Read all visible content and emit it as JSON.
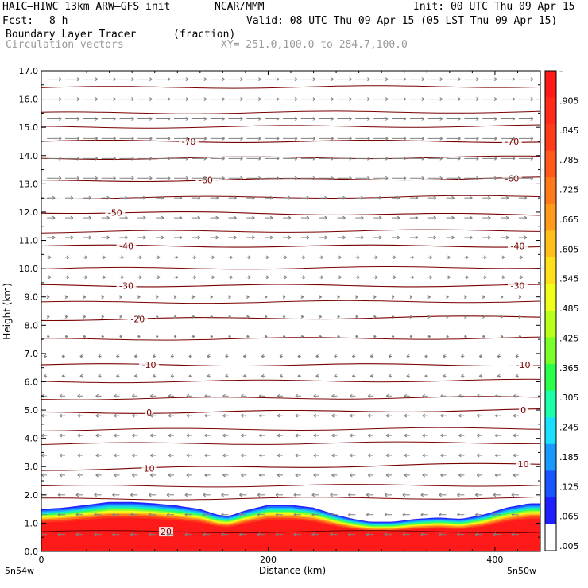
{
  "header": {
    "model": "HAIC–HIWC 13km ARW–GFS init",
    "org": "NCAR/MMM",
    "init": "Init: 00 UTC Thu 09 Apr 15",
    "fcst_label": "Fcst:",
    "fcst_value": "8 h",
    "valid": "Valid: 08 UTC Thu 09 Apr 15 (05 LST Thu 09 Apr 15)",
    "field_name": "Boundary Layer Tracer",
    "field_units": "(fraction)",
    "vector_name": "Circulation vectors",
    "xy_range": "XY= 251.0,100.0 to 284.7,100.0"
  },
  "chart_data": {
    "type": "heatmap",
    "xlabel": "Distance (km)",
    "ylabel": "Height (km)",
    "xlim": [
      0,
      440
    ],
    "ylim": [
      0.0,
      17.0
    ],
    "x_ticks": [
      "0",
      "200",
      "400"
    ],
    "x_tick_values": [
      0,
      200,
      400
    ],
    "y_ticks": [
      "0.0",
      "1.0",
      "2.0",
      "3.0",
      "4.0",
      "5.0",
      "6.0",
      "7.0",
      "8.0",
      "9.0",
      "10.0",
      "11.0",
      "12.0",
      "13.0",
      "14.0",
      "15.0",
      "16.0",
      "17.0"
    ],
    "endpoint_labels": [
      "5n54w",
      "5n50w"
    ],
    "colorbar": {
      "labels": [
        "–",
        ".905",
        ".845",
        ".785",
        ".725",
        ".665",
        ".605",
        ".545",
        ".485",
        ".425",
        ".365",
        ".305",
        ".245",
        ".185",
        ".125",
        ".065",
        ".005"
      ],
      "colors": [
        "#ff1a1a",
        "#ff2a1a",
        "#ff3c1a",
        "#ff5a1a",
        "#ff7a1a",
        "#ff9a1a",
        "#ffbe1a",
        "#ffe01a",
        "#f0ff1a",
        "#b8ff1a",
        "#7aff2a",
        "#2aff4a",
        "#1affaa",
        "#1ae0ff",
        "#1a9aff",
        "#1a55ff",
        "#2020ff",
        "#ffffff"
      ]
    },
    "tracer_top_km": [
      [
        0,
        1.5
      ],
      [
        20,
        1.55
      ],
      [
        40,
        1.65
      ],
      [
        60,
        1.75
      ],
      [
        80,
        1.75
      ],
      [
        100,
        1.7
      ],
      [
        120,
        1.62
      ],
      [
        140,
        1.5
      ],
      [
        155,
        1.3
      ],
      [
        165,
        1.25
      ],
      [
        180,
        1.45
      ],
      [
        200,
        1.65
      ],
      [
        220,
        1.65
      ],
      [
        240,
        1.55
      ],
      [
        260,
        1.3
      ],
      [
        275,
        1.15
      ],
      [
        290,
        1.05
      ],
      [
        310,
        1.05
      ],
      [
        330,
        1.15
      ],
      [
        350,
        1.2
      ],
      [
        370,
        1.15
      ],
      [
        390,
        1.3
      ],
      [
        410,
        1.55
      ],
      [
        430,
        1.7
      ],
      [
        440,
        1.7
      ]
    ],
    "temperature_contours": [
      {
        "label": "-70",
        "y0": 14.5,
        "y1": 14.5,
        "label_x": [
          130,
          415
        ]
      },
      {
        "label": "-60",
        "y0": 13.1,
        "y1": 13.2,
        "label_x": [
          145,
          415
        ]
      },
      {
        "label": "-50",
        "y0": 12.0,
        "y1": 11.9,
        "label_x": [
          65
        ]
      },
      {
        "label": "-40",
        "y0": 10.8,
        "y1": 10.8,
        "label_x": [
          75,
          420
        ]
      },
      {
        "label": "-30",
        "y0": 9.4,
        "y1": 9.4,
        "label_x": [
          75,
          420
        ]
      },
      {
        "label": "-20",
        "y0": 8.2,
        "y1": 8.3,
        "label_x": [
          85
        ]
      },
      {
        "label": "-10",
        "y0": 6.6,
        "y1": 6.6,
        "label_x": [
          95,
          425
        ]
      },
      {
        "label": "0",
        "y0": 4.9,
        "y1": 5.0,
        "label_x": [
          95,
          425
        ]
      },
      {
        "label": "10",
        "y0": 2.9,
        "y1": 3.1,
        "label_x": [
          95,
          425
        ]
      },
      {
        "label": "20",
        "y0": 0.7,
        "y1": 0.7,
        "label_x": [
          110
        ]
      }
    ],
    "other_contour_levels_km": [
      16.4,
      15.5,
      15.0,
      13.9,
      12.5,
      11.3,
      10.0,
      8.8,
      7.5,
      6.0,
      5.4,
      4.3,
      3.8,
      2.3,
      1.85
    ],
    "wind_vectors": {
      "upper_levels_eastward_length": "long",
      "lower_levels_westward_length": "short"
    }
  }
}
